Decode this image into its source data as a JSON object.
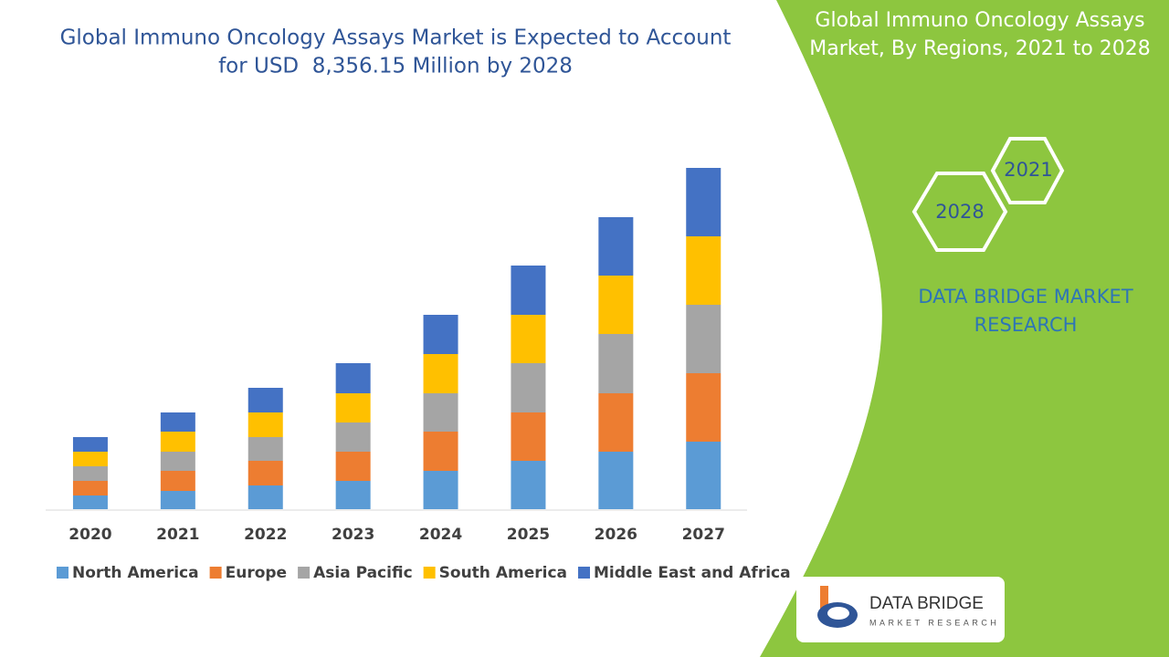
{
  "chart_data": {
    "type": "stacked_bar",
    "title": [
      "Global Immuno Oncology Assays Market is Expected to Account",
      "for USD  8,356.15 Million by 2028"
    ],
    "categories": [
      "2020",
      "2021",
      "2022",
      "2023",
      "2024",
      "2025",
      "2026",
      "2027"
    ],
    "series": [
      {
        "name": "North America",
        "color": "#5b9bd5",
        "values": [
          15,
          20,
          26,
          31,
          42,
          53,
          63,
          74
        ]
      },
      {
        "name": "Europe",
        "color": "#ed7d31",
        "values": [
          16,
          22,
          27,
          32,
          43,
          53,
          64,
          75
        ]
      },
      {
        "name": "Asia Pacific",
        "color": "#a5a5a5",
        "values": [
          16,
          21,
          26,
          32,
          42,
          54,
          65,
          75
        ]
      },
      {
        "name": "South America",
        "color": "#ffc000",
        "values": [
          16,
          22,
          27,
          32,
          43,
          53,
          64,
          75
        ]
      },
      {
        "name": "Middle East and Africa",
        "color": "#4472c4",
        "values": [
          16,
          21,
          27,
          33,
          43,
          54,
          64,
          75
        ]
      }
    ]
  },
  "side_panel": {
    "title": [
      "Global Immuno Oncology Assays",
      "Market, By Regions, 2021 to 2028"
    ],
    "hex_top": "2021",
    "hex_bottom": "2028",
    "brand": [
      "DATA BRIDGE MARKET",
      "RESEARCH"
    ],
    "logo": {
      "name": "DATA BRIDGE",
      "tagline": "MARKET RESEARCH"
    }
  }
}
